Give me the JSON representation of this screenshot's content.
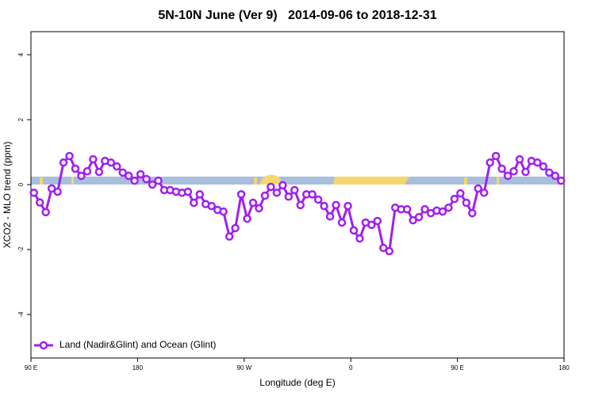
{
  "chart_data": {
    "type": "line",
    "title": "5N-10N June (Ver 9)   2014-09-06 to 2018-12-31",
    "xlabel": "Longitude (deg E)",
    "ylabel": "XCO2 - MLO trend (ppm)",
    "xlim": [
      90,
      540
    ],
    "ylim": [
      -5.34,
      4.71
    ],
    "xticks": [
      {
        "value": 90,
        "label": "90 E"
      },
      180,
      {
        "value": 270,
        "label": "90 W"
      },
      {
        "value": 360,
        "label": "0"
      },
      {
        "value": 450,
        "label": "90 E"
      },
      {
        "value": 540,
        "label": "180"
      }
    ],
    "yticks": [
      -4,
      -2,
      0,
      2,
      4
    ],
    "legend": "bottom-left",
    "x": [
      92.5,
      97.5,
      102.5,
      107.5,
      112.5,
      117.5,
      122.5,
      127.5,
      132.5,
      137.5,
      142.5,
      147.5,
      152.5,
      157.5,
      162.5,
      167.5,
      172.5,
      177.5,
      182.5,
      187.5,
      192.5,
      197.5,
      202.5,
      207.5,
      212.5,
      217.5,
      222.5,
      227.5,
      232.5,
      237.5,
      242.5,
      247.5,
      252.5,
      257.5,
      262.5,
      267.5,
      272.5,
      277.5,
      282.5,
      287.5,
      292.5,
      297.5,
      302.5,
      307.5,
      312.5,
      317.5,
      322.5,
      327.5,
      332.5,
      337.5,
      342.5,
      347.5,
      352.5,
      357.5,
      362.5,
      367.5,
      372.5,
      377.5,
      382.5,
      387.5,
      392.5,
      397.5,
      402.5,
      407.5,
      412.5,
      417.5,
      422.5,
      427.5,
      432.5,
      437.5,
      442.5,
      447.5,
      452.5,
      457.5,
      462.5,
      467.5,
      472.5,
      477.5,
      482.5,
      487.5,
      492.5,
      497.5,
      502.5,
      507.5,
      512.5,
      517.5,
      522.5,
      527.5,
      532.5,
      537.5
    ],
    "series": [
      {
        "name": "Land (Nadir&Glint) and Ocean (Glint)",
        "color": "#a020f0",
        "values": [
          -0.25,
          -0.55,
          -0.85,
          -0.12,
          -0.22,
          0.68,
          0.88,
          0.49,
          0.27,
          0.41,
          0.78,
          0.39,
          0.73,
          0.68,
          0.56,
          0.37,
          0.27,
          0.12,
          0.32,
          0.17,
          0,
          0.12,
          -0.17,
          -0.17,
          -0.22,
          -0.25,
          -0.22,
          -0.56,
          -0.3,
          -0.6,
          -0.66,
          -0.78,
          -0.83,
          -1.6,
          -1.34,
          -0.3,
          -1.05,
          -0.56,
          -0.73,
          -0.34,
          -0.07,
          -0.25,
          -0.02,
          -0.37,
          -0.17,
          -0.63,
          -0.3,
          -0.3,
          -0.46,
          -0.66,
          -0.98,
          -0.63,
          -1.17,
          -0.66,
          -1.41,
          -1.66,
          -1.17,
          -1.24,
          -1.12,
          -1.95,
          -2.05,
          -0.71,
          -0.76,
          -0.76,
          -1.1,
          -1.0,
          -0.76,
          -0.88,
          -0.8,
          -0.83,
          -0.71,
          -0.44,
          -0.27,
          -0.56,
          -0.88,
          -0.12,
          -0.25,
          0.68,
          0.88,
          0.49,
          0.27,
          0.41,
          0.78,
          0.39,
          0.73,
          0.68,
          0.56,
          0.37,
          0.27,
          0.12
        ]
      }
    ]
  }
}
